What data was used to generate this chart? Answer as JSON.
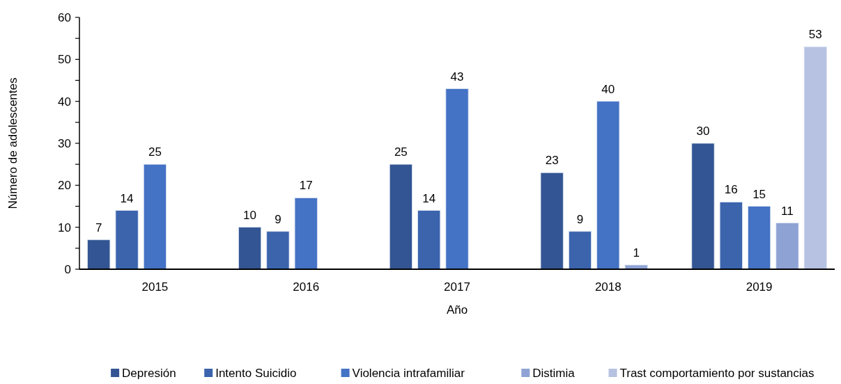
{
  "chart_data": {
    "type": "bar",
    "xlabel": "Año",
    "ylabel": "Número de adolescentes",
    "categories": [
      "2015",
      "2016",
      "2017",
      "2018",
      "2019"
    ],
    "series": [
      {
        "name": "Depresión",
        "color": "#335593",
        "values": [
          7,
          10,
          25,
          23,
          30
        ]
      },
      {
        "name": "Intento Suicidio",
        "color": "#3b64ad",
        "values": [
          14,
          9,
          14,
          9,
          16
        ]
      },
      {
        "name": "Violencia intrafamiliar",
        "color": "#4472c4",
        "values": [
          25,
          17,
          43,
          40,
          15
        ]
      },
      {
        "name": "Distimia",
        "color": "#8fa2d4",
        "values": [
          null,
          null,
          null,
          1,
          11
        ]
      },
      {
        "name": "Trast comportamiento por sustancias",
        "color": "#b7c2e2",
        "values": [
          null,
          null,
          null,
          null,
          53
        ]
      }
    ],
    "ylim": [
      0,
      60
    ],
    "yticks": [
      0,
      {
        "value": 5,
        "label": null
      },
      10,
      {
        "value": 15,
        "label": null
      },
      20,
      {
        "value": 25,
        "label": null
      },
      30,
      {
        "value": 35,
        "label": null
      },
      40,
      {
        "value": 45,
        "label": null
      },
      50,
      {
        "value": 55,
        "label": null
      },
      60
    ],
    "data_labels": true,
    "grid": false,
    "legend": "bottom"
  }
}
